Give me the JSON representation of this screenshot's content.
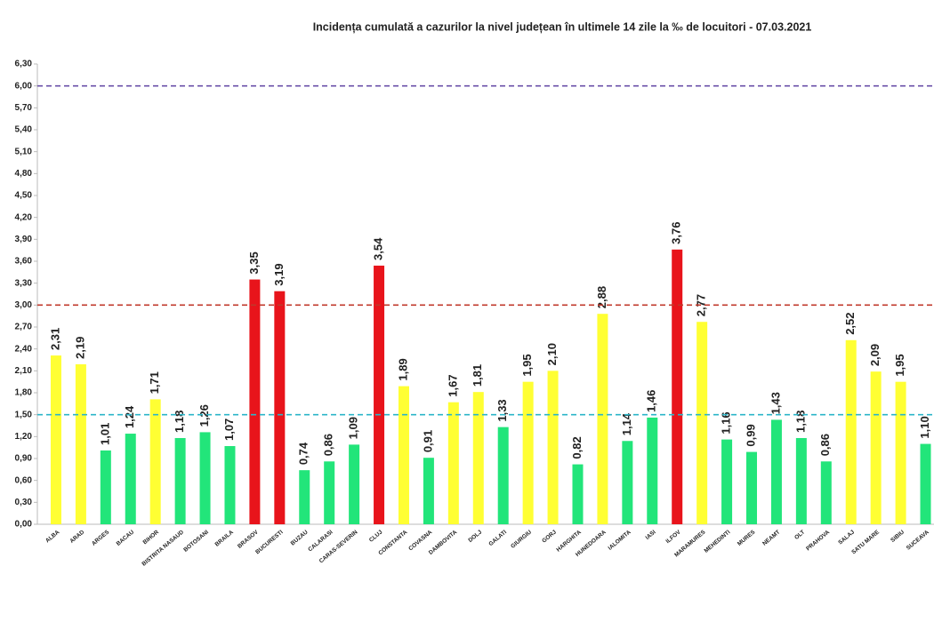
{
  "chart_data": {
    "type": "bar",
    "title": "Incidența cumulată a cazurilor la nivel județean în ultimele 14 zile la ‰ de locuitori - 07.03.2021",
    "categories": [
      "ALBA",
      "ARAD",
      "ARGES",
      "BACAU",
      "BIHOR",
      "BISTRITA NASAUD",
      "BOTOSANI",
      "BRAILA",
      "BRASOV",
      "BUCURESTI",
      "BUZAU",
      "CALARASI",
      "CARAS-SEVERIN",
      "CLUJ",
      "CONSTANTA",
      "COVASNA",
      "DAMBOVITA",
      "DOLJ",
      "GALATI",
      "GIURGIU",
      "GORJ",
      "HARGHITA",
      "HUNEDOARA",
      "IALOMITA",
      "IASI",
      "ILFOV",
      "MARAMURES",
      "MEHEDINTI",
      "MURES",
      "NEAMT",
      "OLT",
      "PRAHOVA",
      "SALAJ",
      "SATU MARE",
      "SIBIU",
      "SUCEAVA"
    ],
    "values": [
      2.31,
      2.19,
      1.01,
      1.24,
      1.71,
      1.18,
      1.26,
      1.07,
      3.35,
      3.19,
      0.74,
      0.86,
      1.09,
      3.54,
      1.89,
      0.91,
      1.67,
      1.81,
      1.33,
      1.95,
      2.1,
      0.82,
      2.88,
      1.14,
      1.46,
      3.76,
      2.77,
      1.16,
      0.99,
      1.43,
      1.18,
      0.86,
      2.52,
      2.09,
      1.95,
      1.1
    ],
    "value_labels": [
      "2,31",
      "2,19",
      "1,01",
      "1,24",
      "1,71",
      "1,18",
      "1,26",
      "1,07",
      "3,35",
      "3,19",
      "0,74",
      "0,86",
      "1,09",
      "3,54",
      "1,89",
      "0,91",
      "1,67",
      "1,81",
      "1,33",
      "1,95",
      "2,10",
      "0,82",
      "2,88",
      "1,14",
      "1,46",
      "3,76",
      "2,77",
      "1,16",
      "0,99",
      "1,43",
      "1,18",
      "0,86",
      "2,52",
      "2,09",
      "1,95",
      "1,10"
    ],
    "colors": [
      "#ffff33",
      "#ffff33",
      "#22e57a",
      "#22e57a",
      "#ffff33",
      "#22e57a",
      "#22e57a",
      "#22e57a",
      "#e8141b",
      "#e8141b",
      "#22e57a",
      "#22e57a",
      "#22e57a",
      "#e8141b",
      "#ffff33",
      "#22e57a",
      "#ffff33",
      "#ffff33",
      "#22e57a",
      "#ffff33",
      "#ffff33",
      "#22e57a",
      "#ffff33",
      "#22e57a",
      "#22e57a",
      "#e8141b",
      "#ffff33",
      "#22e57a",
      "#22e57a",
      "#22e57a",
      "#22e57a",
      "#22e57a",
      "#ffff33",
      "#ffff33",
      "#ffff33",
      "#22e57a"
    ],
    "ylim": [
      0,
      6.3
    ],
    "yticks": [
      {
        "value": 0,
        "label": "0,00"
      },
      {
        "value": 0.3,
        "label": "0,30"
      },
      {
        "value": 0.6,
        "label": "0,60"
      },
      {
        "value": 0.9,
        "label": "0,90"
      },
      {
        "value": 1.2,
        "label": "1,20"
      },
      {
        "value": 1.5,
        "label": "1,50"
      },
      {
        "value": 1.8,
        "label": "1,80"
      },
      {
        "value": 2.1,
        "label": "2,10"
      },
      {
        "value": 2.4,
        "label": "2,40"
      },
      {
        "value": 2.7,
        "label": "2,70"
      },
      {
        "value": 3,
        "label": "3,00"
      },
      {
        "value": 3.3,
        "label": "3,30"
      },
      {
        "value": 3.6,
        "label": "3,60"
      },
      {
        "value": 3.9,
        "label": "3,90"
      },
      {
        "value": 4.2,
        "label": "4,20"
      },
      {
        "value": 4.5,
        "label": "4,50"
      },
      {
        "value": 4.8,
        "label": "4,80"
      },
      {
        "value": 5.1,
        "label": "5,10"
      },
      {
        "value": 5.4,
        "label": "5,40"
      },
      {
        "value": 5.7,
        "label": "5,70"
      },
      {
        "value": 6,
        "label": "6,00"
      },
      {
        "value": 6.3,
        "label": "6,30"
      }
    ],
    "reference_lines": [
      {
        "value": 6,
        "color": "#6a4fa8"
      },
      {
        "value": 3,
        "color": "#c0392b"
      },
      {
        "value": 1.5,
        "color": "#2bb5c8"
      }
    ],
    "grid": false
  }
}
